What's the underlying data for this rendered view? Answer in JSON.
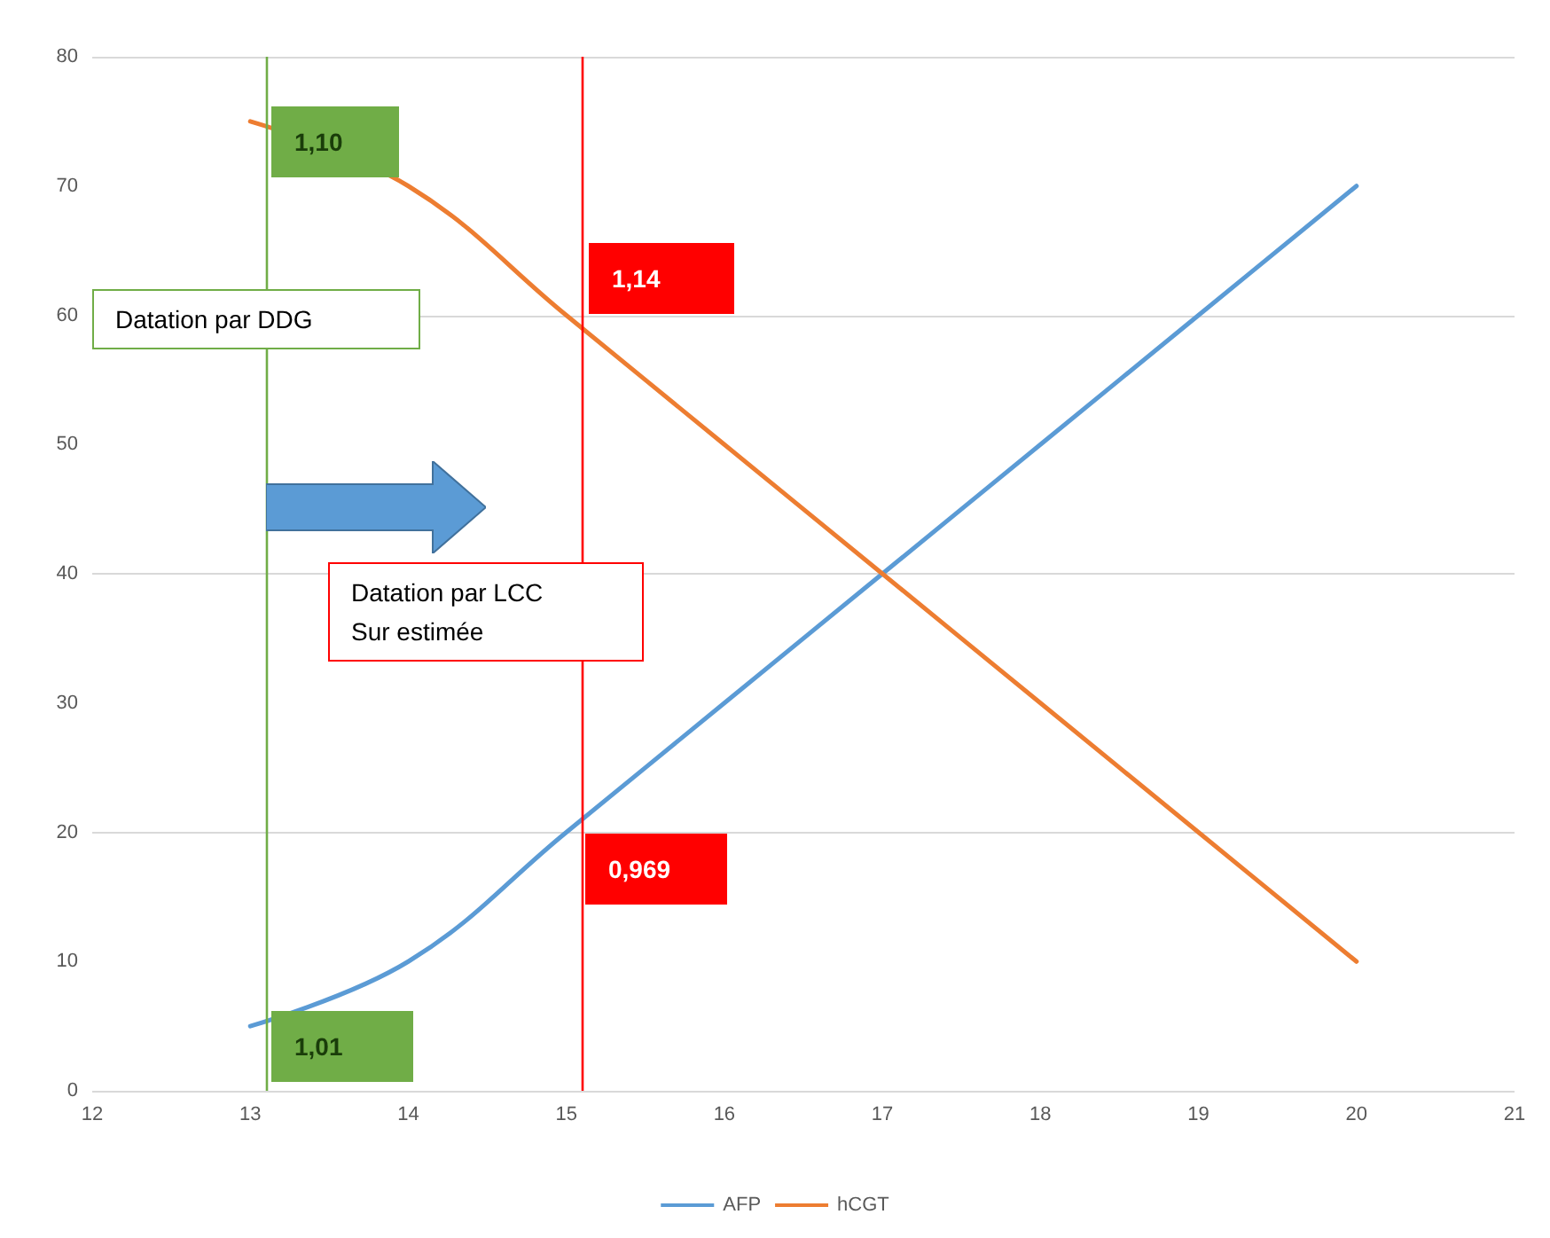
{
  "chart_data": {
    "type": "line",
    "x": [
      13,
      14,
      15,
      16,
      17,
      18,
      19,
      20
    ],
    "series": [
      {
        "name": "AFP",
        "color": "#5b9bd5",
        "values": [
          5,
          10,
          20,
          30,
          40,
          50,
          60,
          70
        ]
      },
      {
        "name": "hCGT",
        "color": "#ed7d31",
        "values": [
          75,
          70,
          60,
          50,
          40,
          30,
          20,
          10
        ]
      }
    ],
    "xlim": [
      12,
      21
    ],
    "xticks": [
      12,
      13,
      14,
      15,
      16,
      17,
      18,
      19,
      20,
      21
    ],
    "ylim": [
      0,
      80
    ],
    "yticks": [
      0,
      10,
      20,
      30,
      40,
      50,
      60,
      70,
      80
    ],
    "grid": "y",
    "legend": "bottom",
    "marker": "none",
    "line_style": "solid",
    "ref_lines": [
      {
        "axis": "x",
        "value": 13.1,
        "color": "#70ad47"
      },
      {
        "axis": "x",
        "value": 15.1,
        "color": "#ff0000"
      }
    ],
    "annotations": [
      "1,10",
      "1,14",
      "0,969",
      "1,01",
      "Datation par DDG",
      "Datation par LCC\nSur estimée"
    ]
  }
}
